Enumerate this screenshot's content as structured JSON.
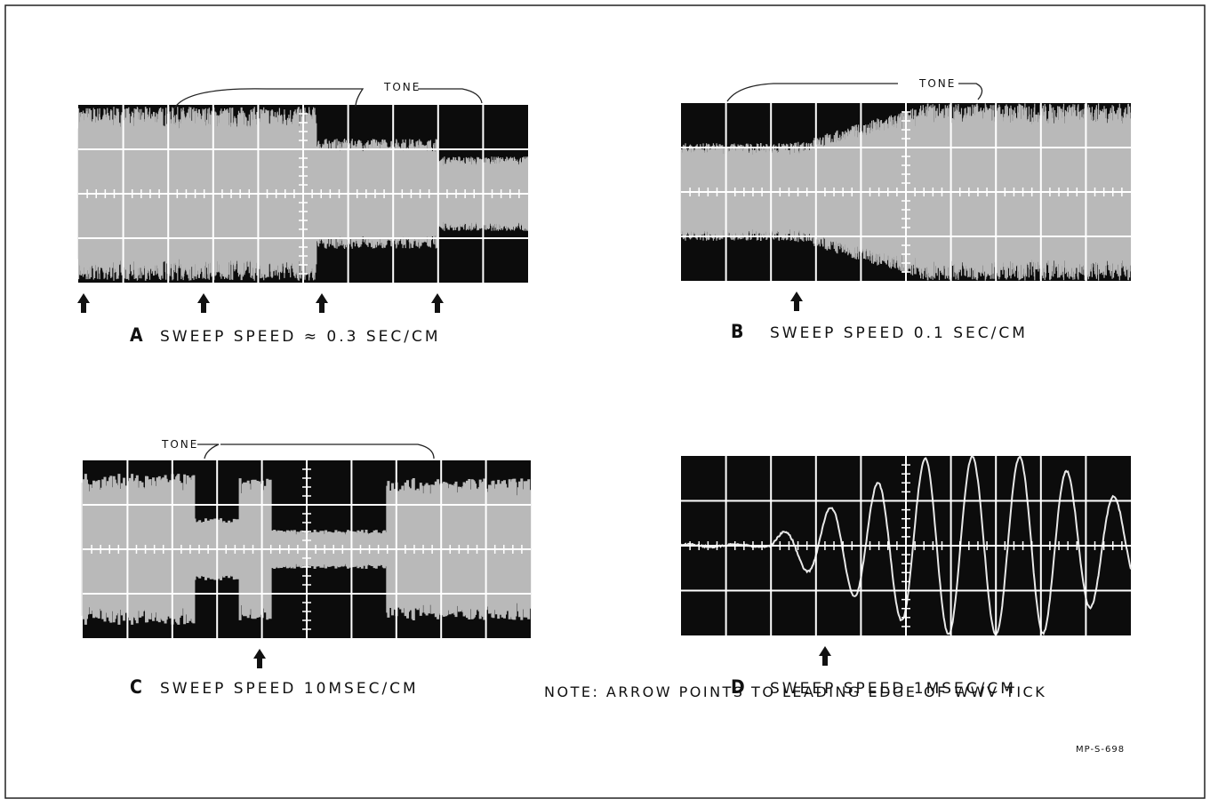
{
  "panels": [
    {
      "letter": "A",
      "caption": "SWEEP SPEED ≈ 0.3 SEC/CM",
      "tone": "TONE"
    },
    {
      "letter": "B",
      "caption": "SWEEP SPEED 0.1 SEC/CM",
      "tone": "TONE"
    },
    {
      "letter": "C",
      "caption": "SWEEP SPEED 10MSEC/CM",
      "tone": "TONE"
    },
    {
      "letter": "D",
      "caption": "SWEEP SPEED 1MSEC/CM"
    }
  ],
  "note": "NOTE: ARROW POINTS TO LEADING EDGE OF WWV TICK",
  "figure_id": "MP-S-698"
}
